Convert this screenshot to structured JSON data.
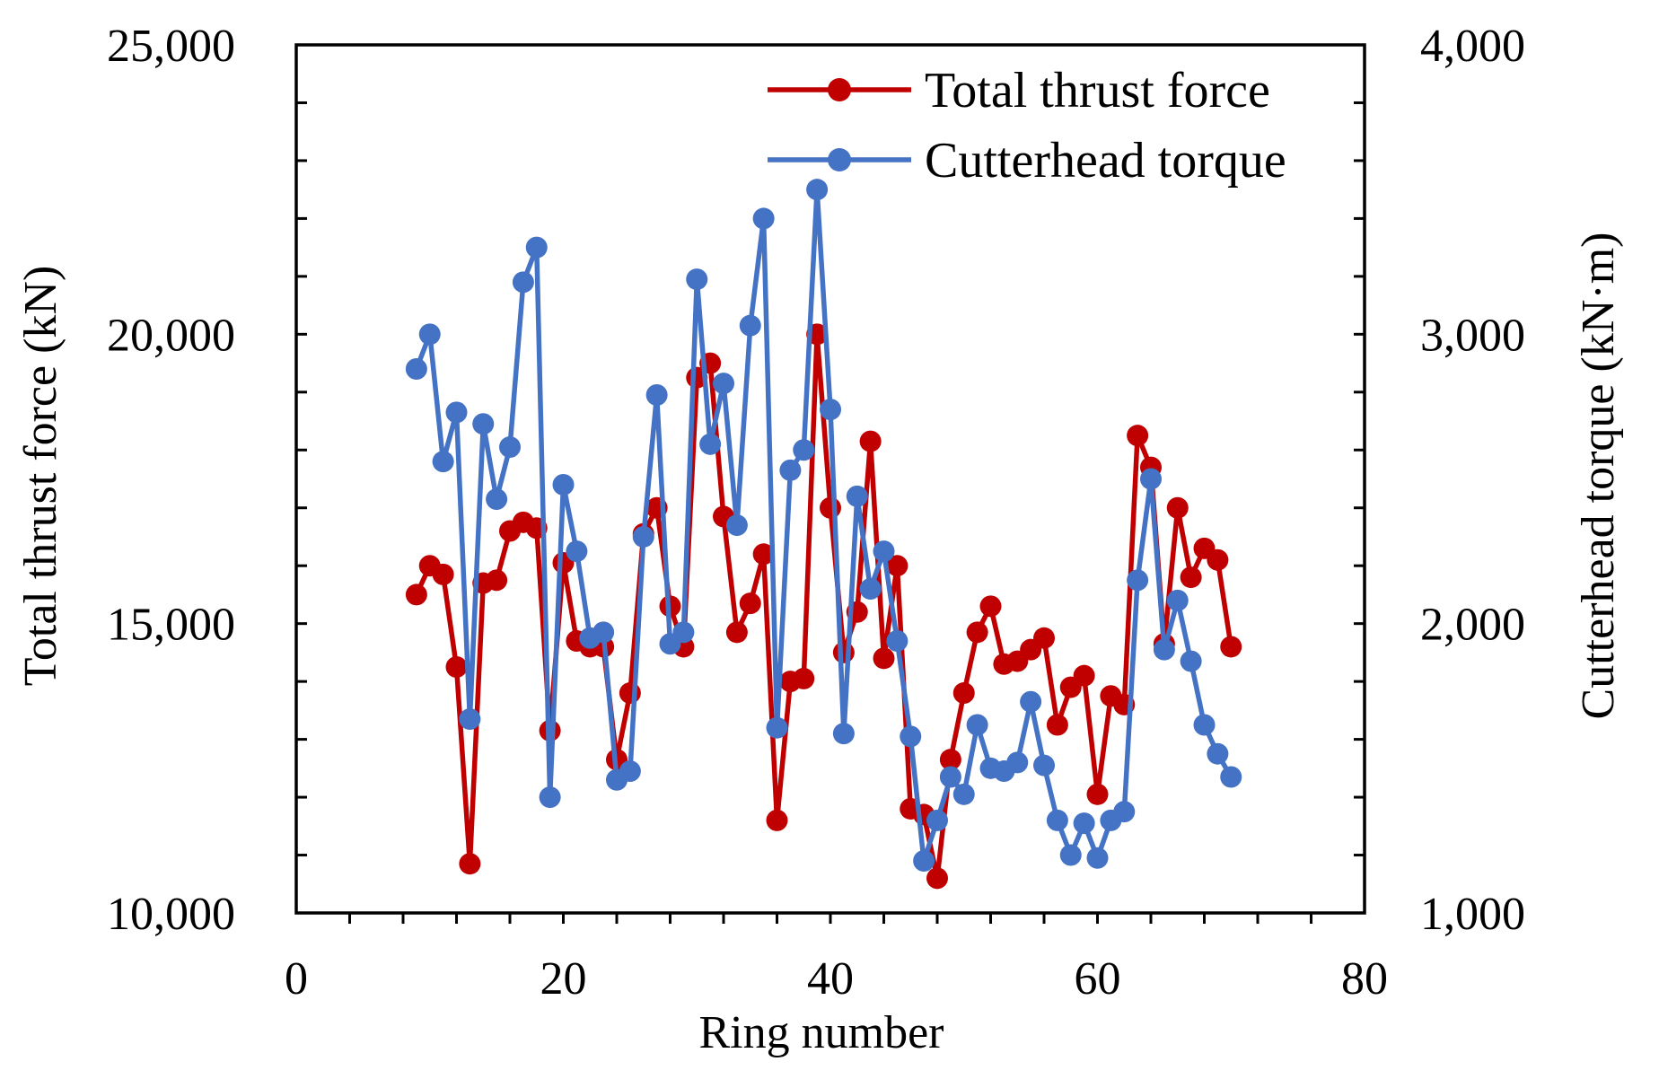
{
  "chart_data": {
    "type": "line",
    "title": "",
    "xlabel": "Ring number",
    "ylabel_left": "Total thrust force (kN)",
    "ylabel_right": "Cutterhead torque (kN·m)",
    "xlim": [
      0,
      80
    ],
    "ylim_left": [
      10000,
      25000
    ],
    "ylim_right": [
      1000,
      4000
    ],
    "x_ticks": [
      0,
      20,
      40,
      60,
      80
    ],
    "x_tick_labels": [
      "0",
      "20",
      "40",
      "60",
      "80"
    ],
    "y_left_ticks": [
      10000,
      15000,
      20000,
      25000
    ],
    "y_left_tick_labels": [
      "10,000",
      "15,000",
      "20,000",
      "25,000"
    ],
    "y_right_ticks": [
      1000,
      2000,
      3000,
      4000
    ],
    "y_right_tick_labels": [
      "1,000",
      "2,000",
      "3,000",
      "4,000"
    ],
    "grid": false,
    "legend_position": "top-right",
    "x": [
      9,
      10,
      11,
      12,
      13,
      14,
      15,
      16,
      17,
      18,
      19,
      20,
      21,
      22,
      23,
      24,
      25,
      26,
      27,
      28,
      29,
      30,
      31,
      32,
      33,
      34,
      35,
      36,
      37,
      38,
      39,
      40,
      41,
      42,
      43,
      44,
      45,
      46,
      47,
      48,
      49,
      50,
      51,
      52,
      53,
      54,
      55,
      56,
      57,
      58,
      59,
      60,
      61,
      62,
      63,
      64,
      65,
      66,
      67,
      68,
      69,
      70
    ],
    "series": [
      {
        "name": "Total thrust force",
        "axis": "left",
        "color": "#c00000",
        "values": [
          15500,
          16000,
          15850,
          14250,
          10850,
          15700,
          15750,
          16600,
          16750,
          16650,
          13150,
          16050,
          14700,
          14600,
          14600,
          12650,
          13800,
          16550,
          17000,
          15300,
          14600,
          19250,
          19500,
          16850,
          14850,
          15350,
          16200,
          11600,
          14000,
          14050,
          20000,
          17000,
          14500,
          15200,
          18150,
          14400,
          16000,
          11800,
          11700,
          10600,
          12650,
          13800,
          14850,
          15300,
          14300,
          14350,
          14550,
          14750,
          13250,
          13900,
          14100,
          12050,
          13750,
          13600,
          18250,
          17700,
          14650,
          17000,
          15800,
          16300,
          16100,
          14600
        ]
      },
      {
        "name": "Cutterhead torque",
        "axis": "right",
        "color": "#4472c4",
        "values": [
          2880,
          3000,
          2560,
          2730,
          1670,
          2690,
          2430,
          2610,
          3180,
          3300,
          1400,
          2480,
          2250,
          1950,
          1970,
          1460,
          1490,
          2300,
          2790,
          1930,
          1970,
          3190,
          2620,
          2830,
          2340,
          3030,
          3400,
          1640,
          2530,
          2600,
          3500,
          2740,
          1620,
          2440,
          2120,
          2250,
          1940,
          1610,
          1180,
          1320,
          1470,
          1410,
          1650,
          1500,
          1490,
          1520,
          1730,
          1510,
          1320,
          1200,
          1310,
          1190,
          1320,
          1350,
          2150,
          2500,
          1910,
          2080,
          1870,
          1650,
          1550,
          1470
        ]
      }
    ]
  }
}
